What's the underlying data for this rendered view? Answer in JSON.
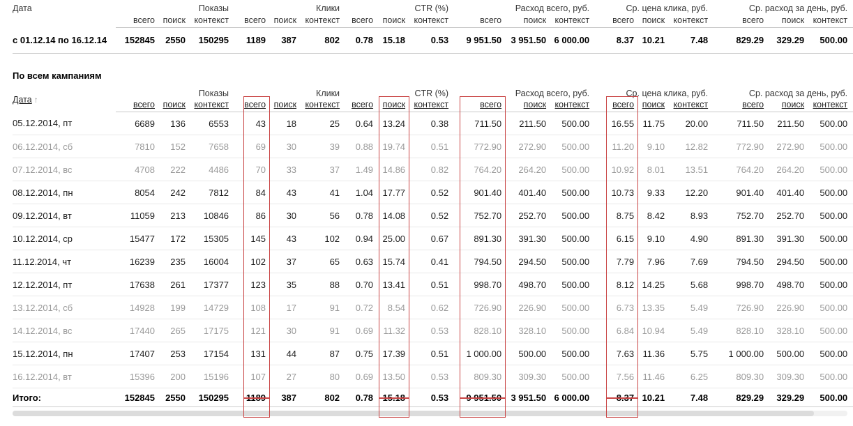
{
  "colors": {
    "highlight_box": "#c94444",
    "muted_row_text": "#999999",
    "row_text": "#1c1c1c"
  },
  "columns": {
    "date_label": "Дата",
    "sort_arrow": "↑",
    "groups": [
      {
        "label": "Показы"
      },
      {
        "label": "Клики"
      },
      {
        "label": "CTR (%)"
      },
      {
        "label": "Расход всего, руб."
      },
      {
        "label": "Ср. цена клика, руб."
      },
      {
        "label": "Ср. расход за день, руб."
      }
    ],
    "subcolumns": [
      "всего",
      "поиск",
      "контекст"
    ]
  },
  "summary_table": {
    "row_label": "с 01.12.14 по 16.12.14",
    "values": [
      "152845",
      "2550",
      "150295",
      "1189",
      "387",
      "802",
      "0.78",
      "15.18",
      "0.53",
      "9 951.50",
      "3 951.50",
      "6 000.00",
      "8.37",
      "10.21",
      "7.48",
      "829.29",
      "329.29",
      "500.00"
    ]
  },
  "section_title": "По всем кампаниям",
  "campaigns_table": {
    "rows": [
      {
        "date": "05.12.2014, пт",
        "muted": false,
        "values": [
          "6689",
          "136",
          "6553",
          "43",
          "18",
          "25",
          "0.64",
          "13.24",
          "0.38",
          "711.50",
          "211.50",
          "500.00",
          "16.55",
          "11.75",
          "20.00",
          "711.50",
          "211.50",
          "500.00"
        ]
      },
      {
        "date": "06.12.2014, сб",
        "muted": true,
        "values": [
          "7810",
          "152",
          "7658",
          "69",
          "30",
          "39",
          "0.88",
          "19.74",
          "0.51",
          "772.90",
          "272.90",
          "500.00",
          "11.20",
          "9.10",
          "12.82",
          "772.90",
          "272.90",
          "500.00"
        ]
      },
      {
        "date": "07.12.2014, вс",
        "muted": true,
        "values": [
          "4708",
          "222",
          "4486",
          "70",
          "33",
          "37",
          "1.49",
          "14.86",
          "0.82",
          "764.20",
          "264.20",
          "500.00",
          "10.92",
          "8.01",
          "13.51",
          "764.20",
          "264.20",
          "500.00"
        ]
      },
      {
        "date": "08.12.2014, пн",
        "muted": false,
        "values": [
          "8054",
          "242",
          "7812",
          "84",
          "43",
          "41",
          "1.04",
          "17.77",
          "0.52",
          "901.40",
          "401.40",
          "500.00",
          "10.73",
          "9.33",
          "12.20",
          "901.40",
          "401.40",
          "500.00"
        ]
      },
      {
        "date": "09.12.2014, вт",
        "muted": false,
        "values": [
          "11059",
          "213",
          "10846",
          "86",
          "30",
          "56",
          "0.78",
          "14.08",
          "0.52",
          "752.70",
          "252.70",
          "500.00",
          "8.75",
          "8.42",
          "8.93",
          "752.70",
          "252.70",
          "500.00"
        ]
      },
      {
        "date": "10.12.2014, ср",
        "muted": false,
        "values": [
          "15477",
          "172",
          "15305",
          "145",
          "43",
          "102",
          "0.94",
          "25.00",
          "0.67",
          "891.30",
          "391.30",
          "500.00",
          "6.15",
          "9.10",
          "4.90",
          "891.30",
          "391.30",
          "500.00"
        ]
      },
      {
        "date": "11.12.2014, чт",
        "muted": false,
        "values": [
          "16239",
          "235",
          "16004",
          "102",
          "37",
          "65",
          "0.63",
          "15.74",
          "0.41",
          "794.50",
          "294.50",
          "500.00",
          "7.79",
          "7.96",
          "7.69",
          "794.50",
          "294.50",
          "500.00"
        ]
      },
      {
        "date": "12.12.2014, пт",
        "muted": false,
        "values": [
          "17638",
          "261",
          "17377",
          "123",
          "35",
          "88",
          "0.70",
          "13.41",
          "0.51",
          "998.70",
          "498.70",
          "500.00",
          "8.12",
          "14.25",
          "5.68",
          "998.70",
          "498.70",
          "500.00"
        ]
      },
      {
        "date": "13.12.2014, сб",
        "muted": true,
        "values": [
          "14928",
          "199",
          "14729",
          "108",
          "17",
          "91",
          "0.72",
          "8.54",
          "0.62",
          "726.90",
          "226.90",
          "500.00",
          "6.73",
          "13.35",
          "5.49",
          "726.90",
          "226.90",
          "500.00"
        ]
      },
      {
        "date": "14.12.2014, вс",
        "muted": true,
        "values": [
          "17440",
          "265",
          "17175",
          "121",
          "30",
          "91",
          "0.69",
          "11.32",
          "0.53",
          "828.10",
          "328.10",
          "500.00",
          "6.84",
          "10.94",
          "5.49",
          "828.10",
          "328.10",
          "500.00"
        ]
      },
      {
        "date": "15.12.2014, пн",
        "muted": false,
        "values": [
          "17407",
          "253",
          "17154",
          "131",
          "44",
          "87",
          "0.75",
          "17.39",
          "0.51",
          "1 000.00",
          "500.00",
          "500.00",
          "7.63",
          "11.36",
          "5.75",
          "1 000.00",
          "500.00",
          "500.00"
        ]
      },
      {
        "date": "16.12.2014, вт",
        "muted": true,
        "values": [
          "15396",
          "200",
          "15196",
          "107",
          "27",
          "80",
          "0.69",
          "13.50",
          "0.53",
          "809.30",
          "309.30",
          "500.00",
          "7.56",
          "11.46",
          "6.25",
          "809.30",
          "309.30",
          "500.00"
        ]
      }
    ],
    "totals": {
      "label": "Итого:",
      "values": [
        "152845",
        "2550",
        "150295",
        "1189",
        "387",
        "802",
        "0.78",
        "15.18",
        "0.53",
        "9 951.50",
        "3 951.50",
        "6 000.00",
        "8.37",
        "10.21",
        "7.48",
        "829.29",
        "329.29",
        "500.00"
      ]
    }
  }
}
